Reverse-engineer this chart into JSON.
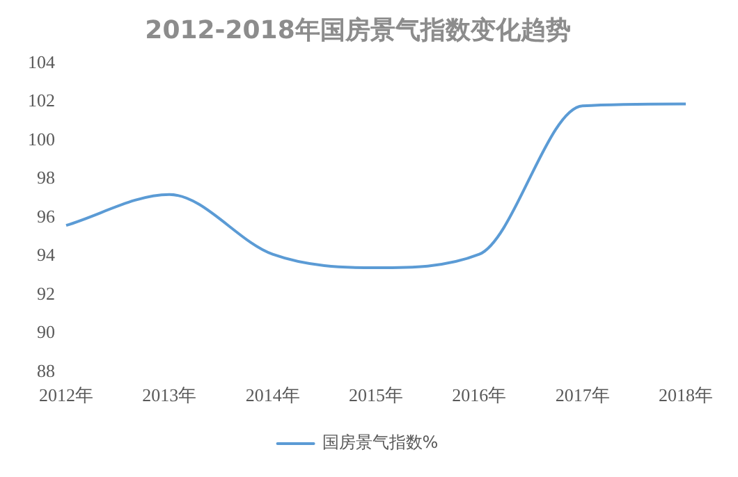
{
  "chart_data": {
    "type": "line",
    "title": "2012-2018年国房景气指数变化趋势",
    "categories": [
      "2012年",
      "2013年",
      "2014年",
      "2015年",
      "2016年",
      "2017年",
      "2018年"
    ],
    "series": [
      {
        "name": "国房景气指数%",
        "color": "#5b9bd5",
        "values": [
          95.6,
          97.2,
          94.1,
          93.4,
          94.1,
          101.8,
          101.9
        ]
      }
    ],
    "ylim": [
      88,
      104
    ],
    "yticks": [
      88,
      90,
      92,
      94,
      96,
      98,
      100,
      102,
      104
    ],
    "grid": false,
    "legend": "bottom",
    "marker": "none",
    "line_style": "solid"
  }
}
